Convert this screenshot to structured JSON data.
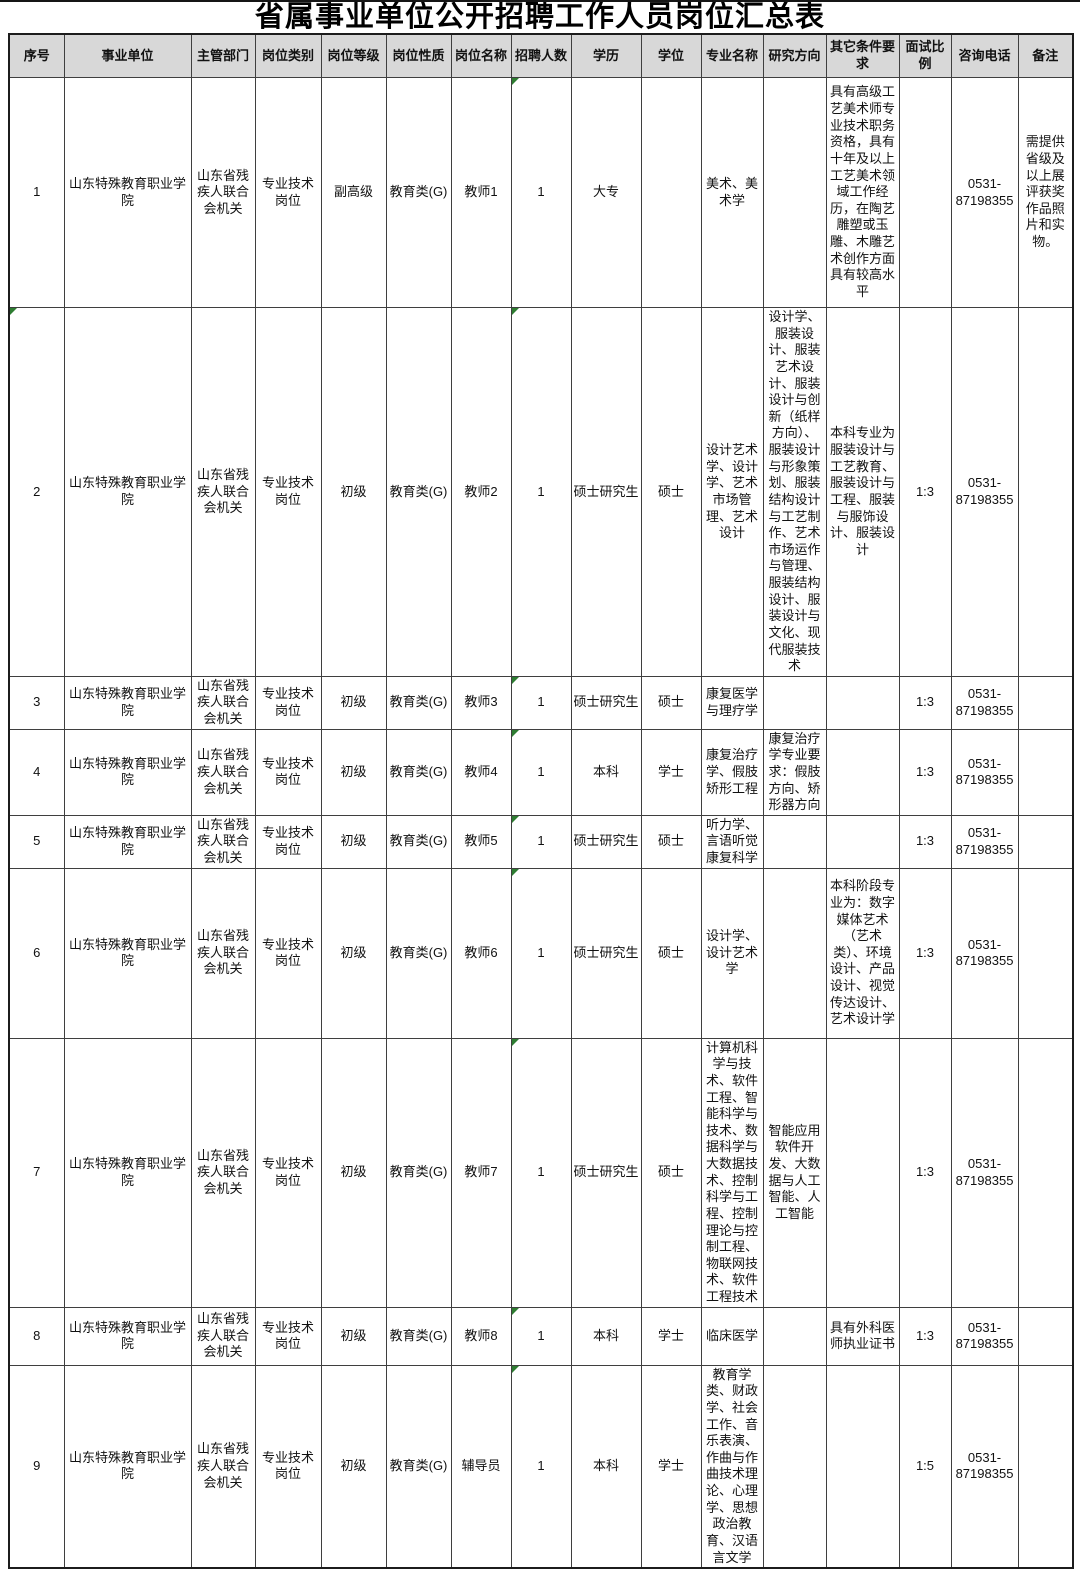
{
  "title": "省属事业单位公开招聘工作人员岗位汇总表",
  "colors": {
    "header_bg": "#d8d8d8",
    "border": "#3f3f3f",
    "comment_marker_green": "#2e7d32"
  },
  "table": {
    "columns": [
      "序号",
      "事业单位",
      "主管部门",
      "岗位类别",
      "岗位等级",
      "岗位性质",
      "岗位名称",
      "招聘人数",
      "学历",
      "学位",
      "专业名称",
      "研究方向",
      "其它条件要求",
      "面试比例",
      "咨询电话",
      "备注"
    ],
    "rows": [
      {
        "cells": [
          "1",
          "山东特殊教育职业学院",
          "山东省残疾人联合会机关",
          "专业技术岗位",
          "副高级",
          "教育类(G)",
          "教师1",
          "1",
          "大专",
          "",
          "美术、美术学",
          "",
          "具有高级工艺美术师专业技术职务资格，具有十年及以上工艺美术领域工作经历，在陶艺雕塑或玉雕、木雕艺术创作方面具有较高水平",
          "",
          "0531-87198355",
          "需提供省级及以上展评获奖作品照片和实物。"
        ]
      },
      {
        "cells": [
          "2",
          "山东特殊教育职业学院",
          "山东省残疾人联合会机关",
          "专业技术岗位",
          "初级",
          "教育类(G)",
          "教师2",
          "1",
          "硕士研究生",
          "硕士",
          "设计艺术学、设计学、艺术市场管理、艺术设计",
          "设计学、服装设计、服装艺术设计、服装设计与创新（纸样方向）、服装设计与形象策划、服装结构设计与工艺制作、艺术市场运作与管理、服装结构设计、服装设计与文化、现代服装技术",
          "本科专业为服装设计与工艺教育、服装设计与工程、服装与服饰设计、服装设计",
          "1:3",
          "0531-87198355",
          ""
        ]
      },
      {
        "cells": [
          "3",
          "山东特殊教育职业学院",
          "山东省残疾人联合会机关",
          "专业技术岗位",
          "初级",
          "教育类(G)",
          "教师3",
          "1",
          "硕士研究生",
          "硕士",
          "康复医学与理疗学",
          "",
          "",
          "1:3",
          "0531-87198355",
          ""
        ]
      },
      {
        "cells": [
          "4",
          "山东特殊教育职业学院",
          "山东省残疾人联合会机关",
          "专业技术岗位",
          "初级",
          "教育类(G)",
          "教师4",
          "1",
          "本科",
          "学士",
          "康复治疗学、假肢矫形工程",
          "康复治疗学专业要求：假肢方向、矫形器方向",
          "",
          "1:3",
          "0531-87198355",
          ""
        ]
      },
      {
        "cells": [
          "5",
          "山东特殊教育职业学院",
          "山东省残疾人联合会机关",
          "专业技术岗位",
          "初级",
          "教育类(G)",
          "教师5",
          "1",
          "硕士研究生",
          "硕士",
          "听力学、言语听觉康复科学",
          "",
          "",
          "1:3",
          "0531-87198355",
          ""
        ]
      },
      {
        "cells": [
          "6",
          "山东特殊教育职业学院",
          "山东省残疾人联合会机关",
          "专业技术岗位",
          "初级",
          "教育类(G)",
          "教师6",
          "1",
          "硕士研究生",
          "硕士",
          "设计学、设计艺术学",
          "",
          "本科阶段专业为：数字媒体艺术（艺术类）、环境设计、产品设计、视觉传达设计、艺术设计学",
          "1:3",
          "0531-87198355",
          ""
        ]
      },
      {
        "cells": [
          "7",
          "山东特殊教育职业学院",
          "山东省残疾人联合会机关",
          "专业技术岗位",
          "初级",
          "教育类(G)",
          "教师7",
          "1",
          "硕士研究生",
          "硕士",
          "计算机科学与技术、软件工程、智能科学与技术、数据科学与大数据技术、控制科学与工程、控制理论与控制工程、物联网技术、软件工程技术",
          "智能应用软件开发、大数据与人工智能、人工智能",
          "",
          "1:3",
          "0531-87198355",
          ""
        ]
      },
      {
        "cells": [
          "8",
          "山东特殊教育职业学院",
          "山东省残疾人联合会机关",
          "专业技术岗位",
          "初级",
          "教育类(G)",
          "教师8",
          "1",
          "本科",
          "学士",
          "临床医学",
          "",
          "具有外科医师执业证书",
          "1:3",
          "0531-87198355",
          ""
        ]
      },
      {
        "cells": [
          "9",
          "山东特殊教育职业学院",
          "山东省残疾人联合会机关",
          "专业技术岗位",
          "初级",
          "教育类(G)",
          "辅导员",
          "1",
          "本科",
          "学士",
          "教育学类、财政学、社会工作、音乐表演、作曲与作曲技术理论、心理学、思想政治教育、汉语言文学",
          "",
          "",
          "1:5",
          "0531-87198355",
          ""
        ]
      }
    ]
  }
}
